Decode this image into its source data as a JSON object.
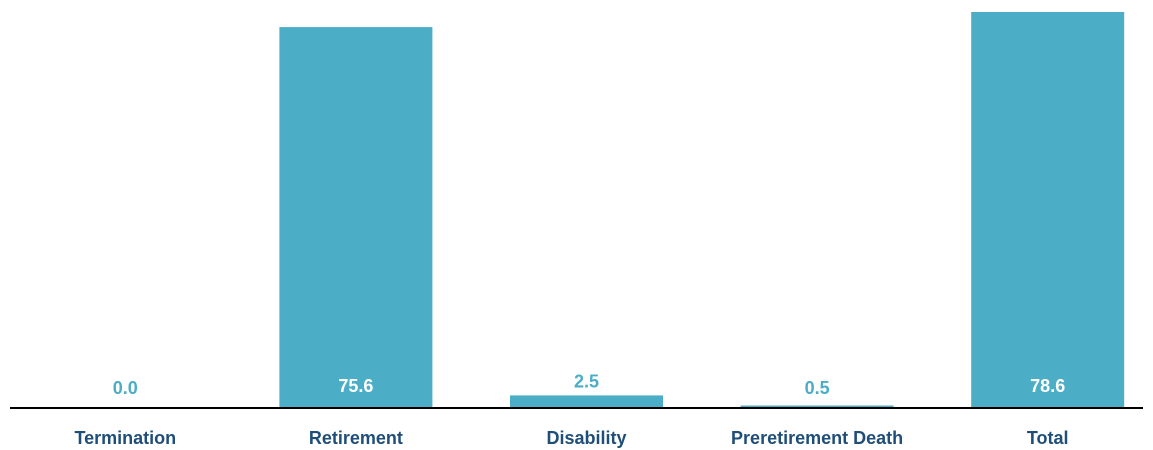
{
  "chart_data": {
    "type": "bar",
    "categories": [
      "Termination",
      "Retirement",
      "Disability",
      "Preretirement Death",
      "Total"
    ],
    "values": [
      0.0,
      75.6,
      2.5,
      0.5,
      78.6
    ],
    "value_labels": [
      "0.0",
      "75.6",
      "2.5",
      "0.5",
      "78.6"
    ],
    "title": "",
    "xlabel": "",
    "ylabel": "",
    "ylim": [
      0,
      79
    ],
    "grid": false,
    "legend": "none",
    "bar_color": "#4badc6",
    "label_color": "#1f4e79",
    "baseline_color": "#000000"
  }
}
